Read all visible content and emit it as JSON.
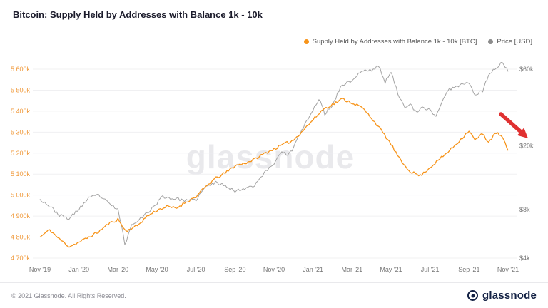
{
  "header": {
    "title": "Bitcoin: Supply Held by Addresses with Balance 1k - 10k"
  },
  "legend": [
    {
      "label": "Supply Held by Addresses with Balance 1k - 10k [BTC]",
      "color": "#f7941a"
    },
    {
      "label": "Price [USD]",
      "color": "#8c8c8c"
    }
  ],
  "watermark": "glassnode",
  "footer": {
    "copyright": "© 2021 Glassnode. All Rights Reserved.",
    "logo_text": "glassnode"
  },
  "chart_data": {
    "type": "line",
    "title": "Bitcoin: Supply Held by Addresses with Balance 1k - 10k",
    "x_unit": "months since Nov 2019",
    "x_range": [
      0,
      24
    ],
    "grid": "horizontal",
    "legend_position": "top-right",
    "x_axis": {
      "ticks": [
        {
          "label": "Nov '19",
          "m": 0
        },
        {
          "label": "Jan '20",
          "m": 2
        },
        {
          "label": "Mar '20",
          "m": 4
        },
        {
          "label": "May '20",
          "m": 6
        },
        {
          "label": "Jul '20",
          "m": 8
        },
        {
          "label": "Sep '20",
          "m": 10
        },
        {
          "label": "Nov '20",
          "m": 12
        },
        {
          "label": "Jan '21",
          "m": 14
        },
        {
          "label": "Mar '21",
          "m": 16
        },
        {
          "label": "May '21",
          "m": 18
        },
        {
          "label": "Jul '21",
          "m": 20
        },
        {
          "label": "Sep '21",
          "m": 22
        },
        {
          "label": "Nov '21",
          "m": 24
        }
      ]
    },
    "left_axis": {
      "unit": "thousand BTC",
      "scale": "linear",
      "min": 4700,
      "max": 5600,
      "tick_color": "#f09a3c",
      "ticks": [
        {
          "label": "5 600k",
          "value": 5600
        },
        {
          "label": "5 500k",
          "value": 5500
        },
        {
          "label": "5 400k",
          "value": 5400
        },
        {
          "label": "5 300k",
          "value": 5300
        },
        {
          "label": "5 200k",
          "value": 5200
        },
        {
          "label": "5 100k",
          "value": 5100
        },
        {
          "label": "5 000k",
          "value": 5000
        },
        {
          "label": "4 900k",
          "value": 4900
        },
        {
          "label": "4 800k",
          "value": 4800
        },
        {
          "label": "4 700k",
          "value": 4700
        }
      ]
    },
    "right_axis": {
      "unit": "USD (thousands)",
      "scale": "log",
      "tick_color": "#777777",
      "ticks": [
        {
          "label": "$60k",
          "value": 60
        },
        {
          "label": "$20k",
          "value": 20
        },
        {
          "label": "$8k",
          "value": 8
        },
        {
          "label": "$4k",
          "value": 4
        }
      ]
    },
    "series": [
      {
        "name": "Supply Held by Addresses with Balance 1k - 10k [BTC]",
        "axis": "left",
        "color": "#f7941a",
        "unit": "thousand BTC",
        "seed": 11,
        "points": [
          [
            0,
            4800
          ],
          [
            0.5,
            4835
          ],
          [
            1,
            4790
          ],
          [
            1.5,
            4755
          ],
          [
            2,
            4775
          ],
          [
            2.5,
            4800
          ],
          [
            3,
            4825
          ],
          [
            3.5,
            4862
          ],
          [
            4,
            4885
          ],
          [
            4.4,
            4828
          ],
          [
            5,
            4855
          ],
          [
            5.5,
            4900
          ],
          [
            6,
            4928
          ],
          [
            6.5,
            4945
          ],
          [
            7,
            4938
          ],
          [
            7.5,
            4968
          ],
          [
            8,
            4992
          ],
          [
            8.5,
            5040
          ],
          [
            9,
            5080
          ],
          [
            9.5,
            5105
          ],
          [
            10,
            5140
          ],
          [
            10.5,
            5152
          ],
          [
            11,
            5170
          ],
          [
            11.5,
            5198
          ],
          [
            12,
            5220
          ],
          [
            12.5,
            5242
          ],
          [
            13,
            5262
          ],
          [
            13.5,
            5310
          ],
          [
            14,
            5358
          ],
          [
            14.5,
            5408
          ],
          [
            15,
            5432
          ],
          [
            15.5,
            5458
          ],
          [
            16,
            5440
          ],
          [
            16.5,
            5418
          ],
          [
            17,
            5368
          ],
          [
            17.5,
            5308
          ],
          [
            18,
            5242
          ],
          [
            18.5,
            5162
          ],
          [
            19,
            5112
          ],
          [
            19.5,
            5092
          ],
          [
            20,
            5132
          ],
          [
            20.5,
            5172
          ],
          [
            21,
            5212
          ],
          [
            21.5,
            5258
          ],
          [
            22,
            5308
          ],
          [
            22.3,
            5262
          ],
          [
            22.7,
            5292
          ],
          [
            23,
            5252
          ],
          [
            23.4,
            5298
          ],
          [
            23.7,
            5276
          ],
          [
            24,
            5212
          ]
        ]
      },
      {
        "name": "Price [USD]",
        "axis": "right",
        "color": "#a3a3a3",
        "unit": "USD thousands",
        "seed": 23,
        "points": [
          [
            0,
            9.3
          ],
          [
            0.4,
            8.6
          ],
          [
            1,
            7.4
          ],
          [
            1.5,
            7.0
          ],
          [
            2,
            8.1
          ],
          [
            2.5,
            9.4
          ],
          [
            3,
            9.9
          ],
          [
            3.5,
            8.8
          ],
          [
            4,
            8.0
          ],
          [
            4.35,
            4.8
          ],
          [
            4.7,
            6.4
          ],
          [
            5,
            6.9
          ],
          [
            5.5,
            7.6
          ],
          [
            6,
            8.8
          ],
          [
            6.3,
            9.7
          ],
          [
            6.7,
            9.4
          ],
          [
            7,
            9.4
          ],
          [
            7.5,
            9.1
          ],
          [
            8,
            9.2
          ],
          [
            8.5,
            11.1
          ],
          [
            9,
            11.8
          ],
          [
            9.5,
            11.4
          ],
          [
            10,
            10.4
          ],
          [
            10.5,
            10.9
          ],
          [
            11,
            11.4
          ],
          [
            11.5,
            13.5
          ],
          [
            12,
            15.5
          ],
          [
            12.4,
            18.7
          ],
          [
            12.7,
            17.3
          ],
          [
            13,
            19.4
          ],
          [
            13.5,
            26
          ],
          [
            14,
            33
          ],
          [
            14.3,
            39.5
          ],
          [
            14.6,
            31.5
          ],
          [
            15,
            36
          ],
          [
            15.5,
            48
          ],
          [
            16,
            51
          ],
          [
            16.5,
            58.5
          ],
          [
            17,
            59
          ],
          [
            17.35,
            63
          ],
          [
            17.7,
            50
          ],
          [
            18,
            57
          ],
          [
            18.35,
            42
          ],
          [
            18.7,
            35.5
          ],
          [
            19,
            36
          ],
          [
            19.3,
            32
          ],
          [
            19.6,
            34.5
          ],
          [
            20,
            33.5
          ],
          [
            20.3,
            30.5
          ],
          [
            20.7,
            39.5
          ],
          [
            21,
            45
          ],
          [
            21.3,
            47
          ],
          [
            21.7,
            48.5
          ],
          [
            22,
            50
          ],
          [
            22.3,
            41.5
          ],
          [
            22.7,
            44
          ],
          [
            23,
            55
          ],
          [
            23.4,
            61.5
          ],
          [
            23.7,
            66
          ],
          [
            24,
            58
          ]
        ]
      }
    ],
    "annotation": {
      "type": "arrow",
      "color": "#e03131",
      "description": "thick red arrow pointing down-right at the final decline of the supply series near Nov '21"
    }
  }
}
